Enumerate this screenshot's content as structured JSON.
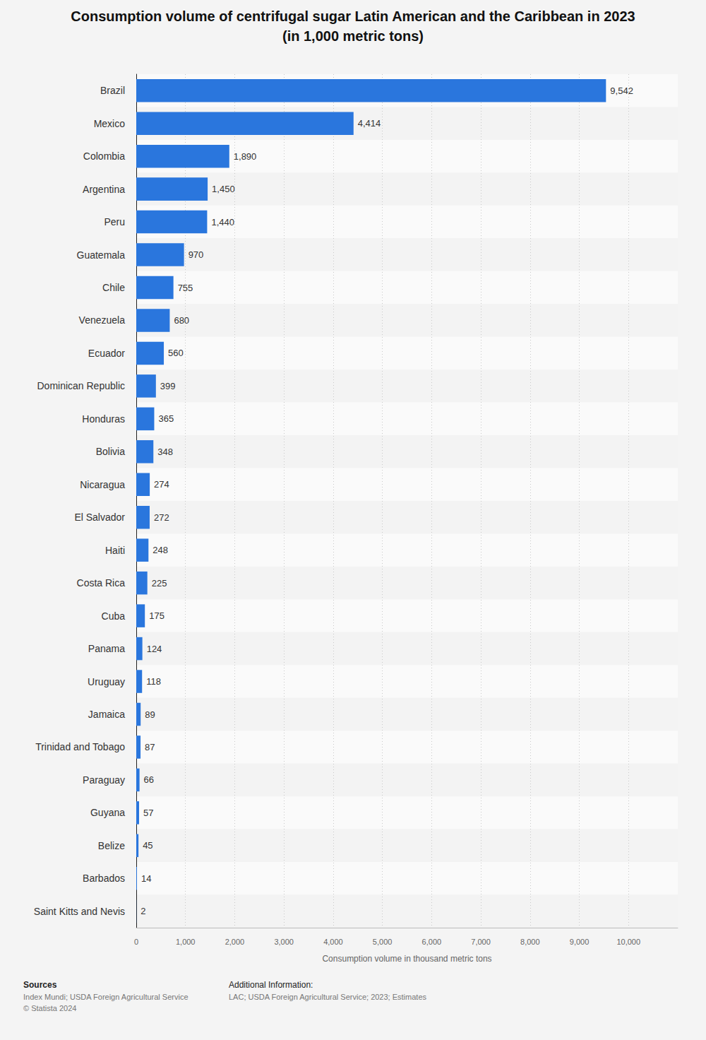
{
  "chart_data": {
    "type": "bar",
    "orientation": "horizontal",
    "title": "Consumption volume of centrifugal sugar Latin American and the Caribbean in 2023",
    "subtitle": "(in 1,000 metric tons)",
    "x_label": "Consumption volume in thousand metric tons",
    "categories": [
      "Brazil",
      "Mexico",
      "Colombia",
      "Argentina",
      "Peru",
      "Guatemala",
      "Chile",
      "Venezuela",
      "Ecuador",
      "Dominican Republic",
      "Honduras",
      "Bolivia",
      "Nicaragua",
      "El Salvador",
      "Haiti",
      "Costa Rica",
      "Cuba",
      "Panama",
      "Uruguay",
      "Jamaica",
      "Trinidad and Tobago",
      "Paraguay",
      "Guyana",
      "Belize",
      "Barbados",
      "Saint Kitts and Nevis"
    ],
    "values": [
      9542,
      4414,
      1890,
      1450,
      1440,
      970,
      755,
      680,
      560,
      399,
      365,
      348,
      274,
      272,
      248,
      225,
      175,
      124,
      118,
      89,
      87,
      66,
      57,
      45,
      14,
      2
    ],
    "value_labels": [
      "9,542",
      "4,414",
      "1,890",
      "1,450",
      "1,440",
      "970",
      "755",
      "680",
      "560",
      "399",
      "365",
      "348",
      "274",
      "272",
      "248",
      "225",
      "175",
      "124",
      "118",
      "89",
      "87",
      "66",
      "57",
      "45",
      "14",
      "2"
    ],
    "color": "#2a76dd",
    "xlim": [
      0,
      11000
    ],
    "xticks": [
      0,
      {
        "value": 1000,
        "label": "1,000"
      },
      {
        "value": 2000,
        "label": "2,000"
      },
      {
        "value": 3000,
        "label": "3,000"
      },
      {
        "value": 4000,
        "label": "4,000"
      },
      {
        "value": 5000,
        "label": "5,000"
      },
      {
        "value": 6000,
        "label": "6,000"
      },
      {
        "value": 7000,
        "label": "7,000"
      },
      {
        "value": 8000,
        "label": "8,000"
      },
      {
        "value": 9000,
        "label": "9,000"
      },
      {
        "value": 10000,
        "label": "10,000"
      }
    ],
    "grid": true,
    "data_labels": true,
    "annotations": [
      "Sources",
      "Index Mundi; USDA Foreign Agricultural Service",
      "© Statista 2024",
      "Additional Information:",
      "LAC; USDA Foreign Agricultural Service; 2023; Estimates"
    ]
  }
}
